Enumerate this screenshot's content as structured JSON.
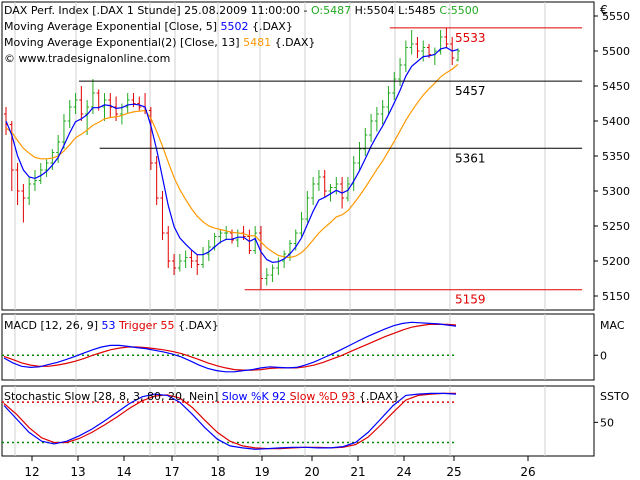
{
  "chart_data": {
    "type": "line",
    "currency_symbol": "€",
    "x_ticks": [
      "12",
      "13",
      "14",
      "17",
      "18",
      "19",
      "20",
      "21",
      "24",
      "25",
      "26"
    ],
    "main": {
      "header": [
        [
          {
            "t": "DAX Perf. Index [.DAX  1 Stunde] 25.08.2009 11:00:00 - ",
            "c": "#000000"
          },
          {
            "t": "O:5487",
            "c": "#22aa22"
          },
          {
            "t": " H:5504 L:5485 ",
            "c": "#000000"
          },
          {
            "t": "C:5500",
            "c": "#22aa22"
          }
        ],
        [
          {
            "t": "Moving Average Exponential [Close, 5] ",
            "c": "#000000"
          },
          {
            "t": "5502",
            "c": "#0000ff"
          },
          {
            "t": " {.DAX}",
            "c": "#000000"
          }
        ],
        [
          {
            "t": "Moving Average Exponential(2) [Close, 13] ",
            "c": "#000000"
          },
          {
            "t": "5481",
            "c": "#ff9900"
          },
          {
            "t": " {.DAX}",
            "c": "#000000"
          }
        ],
        [
          {
            "t": "© www.tradesignalonline.com",
            "c": "#000000"
          }
        ]
      ],
      "ylim": [
        5130,
        5570
      ],
      "yticks": [
        5150,
        5200,
        5250,
        5300,
        5350,
        5400,
        5450,
        5500,
        5550
      ],
      "candles": [
        [
          5410,
          5420,
          5380,
          5395
        ],
        [
          5395,
          5400,
          5300,
          5330
        ],
        [
          5330,
          5340,
          5280,
          5300
        ],
        [
          5300,
          5310,
          5255,
          5290
        ],
        [
          5290,
          5320,
          5280,
          5310
        ],
        [
          5310,
          5330,
          5300,
          5315
        ],
        [
          5315,
          5340,
          5310,
          5330
        ],
        [
          5330,
          5345,
          5320,
          5340
        ],
        [
          5340,
          5360,
          5330,
          5355
        ],
        [
          5355,
          5380,
          5340,
          5370
        ],
        [
          5370,
          5410,
          5360,
          5400
        ],
        [
          5400,
          5430,
          5390,
          5420
        ],
        [
          5420,
          5440,
          5410,
          5430
        ],
        [
          5430,
          5450,
          5400,
          5410
        ],
        [
          5410,
          5430,
          5380,
          5420
        ],
        [
          5420,
          5460,
          5410,
          5440
        ],
        [
          5440,
          5445,
          5415,
          5420
        ],
        [
          5420,
          5440,
          5400,
          5430
        ],
        [
          5430,
          5440,
          5405,
          5420
        ],
        [
          5420,
          5435,
          5400,
          5410
        ],
        [
          5410,
          5425,
          5395,
          5420
        ],
        [
          5420,
          5440,
          5410,
          5430
        ],
        [
          5430,
          5440,
          5420,
          5425
        ],
        [
          5425,
          5435,
          5415,
          5420
        ],
        [
          5420,
          5440,
          5410,
          5415
        ],
        [
          5415,
          5420,
          5330,
          5340
        ],
        [
          5340,
          5350,
          5280,
          5290
        ],
        [
          5290,
          5300,
          5230,
          5240
        ],
        [
          5240,
          5250,
          5190,
          5200
        ],
        [
          5200,
          5210,
          5180,
          5190
        ],
        [
          5190,
          5210,
          5185,
          5200
        ],
        [
          5200,
          5215,
          5190,
          5205
        ],
        [
          5205,
          5215,
          5190,
          5200
        ],
        [
          5200,
          5210,
          5180,
          5195
        ],
        [
          5195,
          5220,
          5190,
          5210
        ],
        [
          5210,
          5230,
          5200,
          5220
        ],
        [
          5220,
          5240,
          5215,
          5235
        ],
        [
          5235,
          5245,
          5225,
          5240
        ],
        [
          5240,
          5250,
          5230,
          5240
        ],
        [
          5240,
          5245,
          5225,
          5230
        ],
        [
          5230,
          5245,
          5220,
          5240
        ],
        [
          5240,
          5250,
          5230,
          5235
        ],
        [
          5235,
          5245,
          5210,
          5215
        ],
        [
          5215,
          5250,
          5210,
          5240
        ],
        [
          5240,
          5250,
          5160,
          5175
        ],
        [
          5175,
          5190,
          5165,
          5180
        ],
        [
          5180,
          5195,
          5170,
          5190
        ],
        [
          5190,
          5205,
          5180,
          5200
        ],
        [
          5200,
          5215,
          5190,
          5210
        ],
        [
          5210,
          5230,
          5200,
          5225
        ],
        [
          5225,
          5245,
          5215,
          5240
        ],
        [
          5240,
          5270,
          5235,
          5260
        ],
        [
          5260,
          5300,
          5255,
          5290
        ],
        [
          5290,
          5320,
          5280,
          5310
        ],
        [
          5310,
          5330,
          5300,
          5320
        ],
        [
          5320,
          5330,
          5290,
          5300
        ],
        [
          5300,
          5310,
          5285,
          5305
        ],
        [
          5305,
          5320,
          5295,
          5310
        ],
        [
          5310,
          5320,
          5275,
          5290
        ],
        [
          5290,
          5320,
          5285,
          5310
        ],
        [
          5310,
          5350,
          5300,
          5340
        ],
        [
          5340,
          5370,
          5330,
          5360
        ],
        [
          5360,
          5390,
          5350,
          5380
        ],
        [
          5380,
          5410,
          5370,
          5400
        ],
        [
          5400,
          5420,
          5385,
          5410
        ],
        [
          5410,
          5430,
          5395,
          5420
        ],
        [
          5420,
          5450,
          5410,
          5440
        ],
        [
          5440,
          5470,
          5430,
          5460
        ],
        [
          5460,
          5490,
          5450,
          5480
        ],
        [
          5480,
          5515,
          5470,
          5505
        ],
        [
          5505,
          5530,
          5495,
          5510
        ],
        [
          5510,
          5520,
          5490,
          5500
        ],
        [
          5500,
          5515,
          5485,
          5505
        ],
        [
          5505,
          5510,
          5490,
          5495
        ],
        [
          5495,
          5505,
          5480,
          5500
        ],
        [
          5500,
          5530,
          5495,
          5520
        ],
        [
          5520,
          5533,
          5505,
          5510
        ],
        [
          5510,
          5520,
          5480,
          5490
        ],
        [
          5487,
          5504,
          5485,
          5500
        ]
      ],
      "ema5": [
        5400,
        5380,
        5350,
        5330,
        5320,
        5318,
        5322,
        5328,
        5337,
        5348,
        5365,
        5383,
        5399,
        5403,
        5409,
        5419,
        5419,
        5423,
        5422,
        5418,
        5419,
        5423,
        5424,
        5423,
        5420,
        5393,
        5359,
        5319,
        5279,
        5249,
        5233,
        5224,
        5216,
        5209,
        5209,
        5213,
        5220,
        5227,
        5231,
        5231,
        5234,
        5234,
        5228,
        5232,
        5213,
        5202,
        5198,
        5199,
        5203,
        5210,
        5220,
        5233,
        5252,
        5271,
        5287,
        5291,
        5296,
        5301,
        5297,
        5301,
        5314,
        5329,
        5346,
        5364,
        5379,
        5393,
        5409,
        5426,
        5444,
        5464,
        5478,
        5485,
        5492,
        5493,
        5495,
        5503,
        5505,
        5500,
        5502
      ],
      "ema13": [
        5390,
        5384,
        5372,
        5361,
        5354,
        5348,
        5346,
        5346,
        5347,
        5350,
        5357,
        5366,
        5376,
        5381,
        5387,
        5394,
        5398,
        5403,
        5405,
        5406,
        5408,
        5411,
        5413,
        5414,
        5415,
        5404,
        5385,
        5364,
        5341,
        5319,
        5302,
        5288,
        5275,
        5264,
        5256,
        5250,
        5247,
        5245,
        5243,
        5241,
        5240,
        5239,
        5236,
        5236,
        5227,
        5219,
        5213,
        5208,
        5206,
        5205,
        5207,
        5212,
        5220,
        5230,
        5240,
        5248,
        5255,
        5263,
        5266,
        5272,
        5282,
        5293,
        5305,
        5318,
        5331,
        5343,
        5357,
        5371,
        5386,
        5401,
        5414,
        5426,
        5437,
        5446,
        5454,
        5463,
        5469,
        5474,
        5481
      ],
      "levels": [
        {
          "label": "5533",
          "value": 5533,
          "color": "#e00000",
          "x0": 0.655,
          "x1": 0.98
        },
        {
          "label": "5457",
          "value": 5457,
          "color": "#000000",
          "x0": 0.13,
          "x1": 0.98
        },
        {
          "label": "5361",
          "value": 5361,
          "color": "#000000",
          "x0": 0.165,
          "x1": 0.98
        },
        {
          "label": "5159",
          "value": 5159,
          "color": "#e00000",
          "x0": 0.41,
          "x1": 0.98
        }
      ]
    },
    "macd": {
      "label_parts": [
        {
          "t": "MACD [12, 26, 9] ",
          "c": "#000000"
        },
        {
          "t": "53",
          "c": "#0000ff"
        },
        {
          "t": " Trigger 55",
          "c": "#e00000"
        },
        {
          "t": " {.DAX}",
          "c": "#000000"
        }
      ],
      "right_label": "MAC",
      "tick_label": "0",
      "ylim": [
        -45,
        75
      ],
      "zero": 0,
      "macd_line": [
        -5,
        -14,
        -20,
        -22,
        -21,
        -17,
        -13,
        -8,
        -2,
        4,
        10,
        15,
        18,
        18,
        16,
        14,
        12,
        9,
        6,
        2,
        -3,
        -10,
        -18,
        -24,
        -28,
        -30,
        -30,
        -28,
        -26,
        -23,
        -21,
        -22,
        -23,
        -22,
        -18,
        -12,
        -5,
        2,
        10,
        18,
        26,
        34,
        41,
        48,
        54,
        58,
        60,
        59,
        58,
        57,
        55,
        53
      ],
      "trigger": [
        -2,
        -8,
        -14,
        -18,
        -20,
        -20,
        -18,
        -15,
        -11,
        -6,
        0,
        5,
        10,
        13,
        15,
        15,
        14,
        12,
        10,
        7,
        3,
        -2,
        -8,
        -14,
        -19,
        -23,
        -26,
        -27,
        -27,
        -26,
        -24,
        -23,
        -23,
        -23,
        -21,
        -18,
        -13,
        -7,
        -1,
        6,
        13,
        20,
        27,
        34,
        40,
        46,
        51,
        54,
        56,
        56,
        56,
        55
      ]
    },
    "stoch": {
      "label_parts": [
        {
          "t": "Stochastic Slow [28, 8, 3, 80, 20, Nein] ",
          "c": "#000000"
        },
        {
          "t": "Slow %K 92",
          "c": "#0000ff"
        },
        {
          "t": " Slow %D 93",
          "c": "#e00000"
        },
        {
          "t": " {.DAX}",
          "c": "#000000"
        }
      ],
      "right_label": "SSTO",
      "tick_label": "50",
      "ylim": [
        0,
        104
      ],
      "levels": [
        80,
        20
      ],
      "k": [
        75,
        55,
        35,
        22,
        18,
        22,
        30,
        40,
        52,
        65,
        78,
        88,
        92,
        90,
        80,
        62,
        42,
        25,
        15,
        12,
        10,
        11,
        12,
        13,
        13,
        12,
        12,
        14,
        20,
        35,
        55,
        75,
        90,
        92,
        93,
        93,
        92
      ],
      "d": [
        78,
        62,
        42,
        27,
        20,
        20,
        26,
        35,
        46,
        58,
        71,
        82,
        89,
        91,
        86,
        72,
        53,
        35,
        22,
        15,
        12,
        11,
        11,
        12,
        13,
        13,
        12,
        13,
        17,
        28,
        46,
        65,
        83,
        90,
        92,
        93,
        93
      ]
    }
  }
}
